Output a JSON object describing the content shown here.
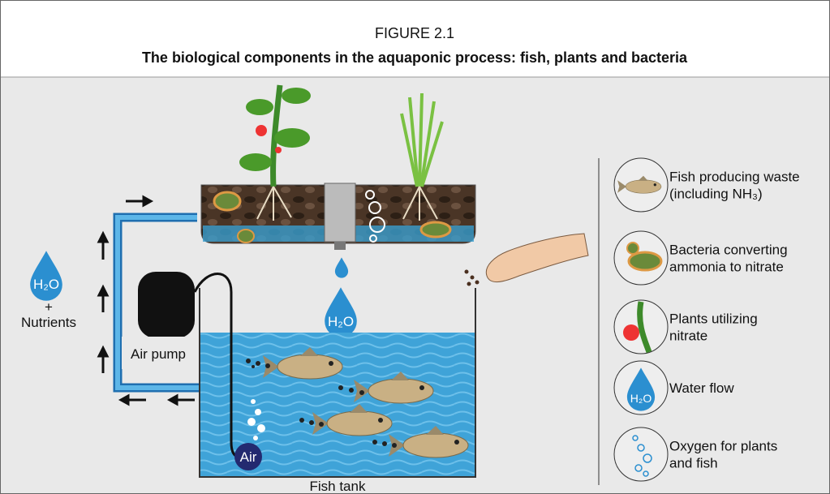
{
  "header": {
    "figure": "FIGURE 2.1",
    "title": "The biological components in the aquaponic process: fish, plants and bacteria"
  },
  "diagram": {
    "inflow_label": "H₂O",
    "plus": "+",
    "nutrients": "Nutrients",
    "air_pump": "Air pump",
    "air": "Air",
    "tank_drop": "H₂O",
    "fish_tank": "Fish tank"
  },
  "legend": {
    "items": [
      {
        "lines": [
          "Fish producing waste",
          "(including NH₃)"
        ]
      },
      {
        "lines": [
          "Bacteria converting",
          "ammonia to nitrate"
        ]
      },
      {
        "lines": [
          "Plants utilizing",
          "nitrate"
        ]
      },
      {
        "lines": [
          "Water flow"
        ],
        "icon_label": "H₂O"
      },
      {
        "lines": [
          "Oxygen for plants",
          "and fish"
        ]
      }
    ]
  }
}
